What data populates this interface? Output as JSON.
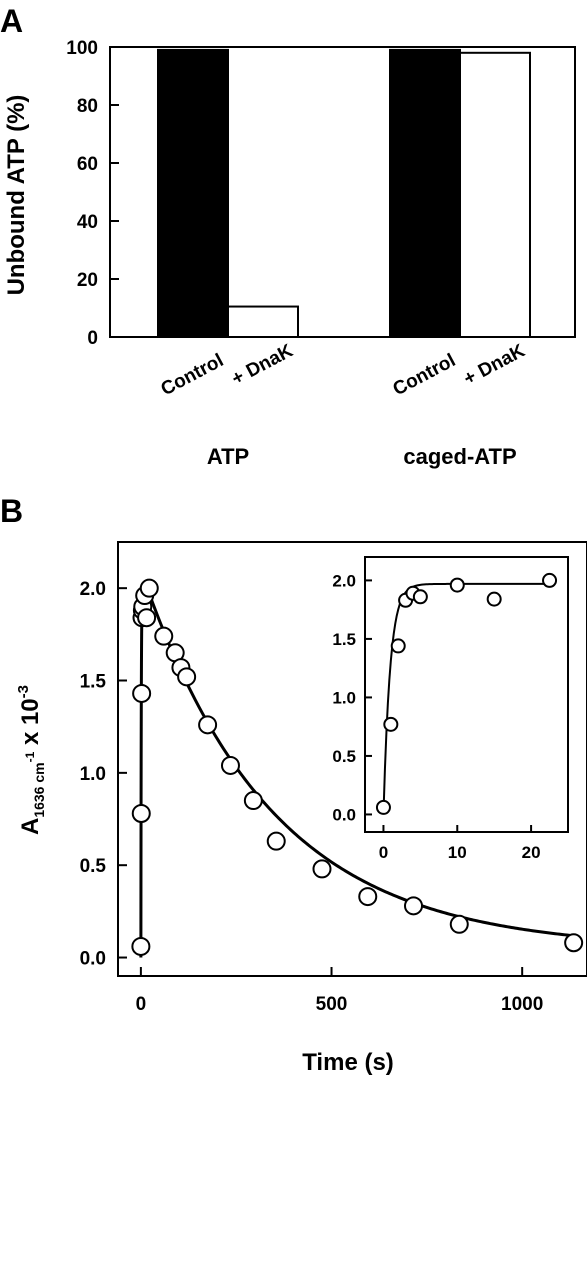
{
  "panels": {
    "a_letter": "A",
    "b_letter": "B"
  },
  "chart_data": [
    {
      "type": "bar",
      "ylabel": "Unbound ATP (%)",
      "ylim": [
        0,
        100
      ],
      "yticks": [
        0,
        20,
        40,
        60,
        80,
        100
      ],
      "groups": [
        {
          "name": "ATP",
          "bars": [
            {
              "label": "Control",
              "value": 99,
              "fill": "black"
            },
            {
              "label": "+ DnaK",
              "value": 10.5,
              "fill": "white"
            }
          ]
        },
        {
          "name": "caged-ATP",
          "bars": [
            {
              "label": "Control",
              "value": 99,
              "fill": "black"
            },
            {
              "label": "+ DnaK",
              "value": 98,
              "fill": "white"
            }
          ]
        }
      ]
    },
    {
      "type": "scatter",
      "xlabel": "Time (s)",
      "ylabel": {
        "main": "A",
        "sub": "1636 cm",
        "sub_sup": "-1",
        "tail": " x 10",
        "sup": "-3"
      },
      "xlim": [
        -60,
        1170
      ],
      "ylim": [
        -0.1,
        2.25
      ],
      "xticks": [
        0,
        500,
        1000
      ],
      "yticks": [
        0.0,
        0.5,
        1.0,
        1.5,
        2.0
      ],
      "ytick_labels": [
        "0.0",
        "0.5",
        "1.0",
        "1.5",
        "2.0"
      ],
      "points": [
        [
          0,
          0.06
        ],
        [
          1,
          0.78
        ],
        [
          2,
          1.43
        ],
        [
          3,
          1.84
        ],
        [
          4,
          1.88
        ],
        [
          5,
          1.9
        ],
        [
          10,
          1.96
        ],
        [
          15,
          1.84
        ],
        [
          22,
          2.0
        ],
        [
          60,
          1.74
        ],
        [
          90,
          1.65
        ],
        [
          105,
          1.57
        ],
        [
          120,
          1.52
        ],
        [
          175,
          1.26
        ],
        [
          235,
          1.04
        ],
        [
          295,
          0.85
        ],
        [
          355,
          0.63
        ],
        [
          475,
          0.48
        ],
        [
          595,
          0.33
        ],
        [
          715,
          0.28
        ],
        [
          835,
          0.18
        ],
        [
          1135,
          0.08
        ]
      ],
      "fit": {
        "peak": 1.97,
        "rise_k": 1.1,
        "decay_tau": 340,
        "decay_start": 22,
        "decay_offset": 0.045
      },
      "inset": {
        "xlim": [
          -2.5,
          25
        ],
        "ylim": [
          -0.15,
          2.2
        ],
        "xticks": [
          0,
          10,
          20
        ],
        "yticks": [
          0.0,
          0.5,
          1.0,
          1.5,
          2.0
        ],
        "ytick_labels": [
          "0.0",
          "0.5",
          "1.0",
          "1.5",
          "2.0"
        ],
        "points": [
          [
            0,
            0.06
          ],
          [
            1,
            0.77
          ],
          [
            2,
            1.44
          ],
          [
            3,
            1.83
          ],
          [
            4,
            1.89
          ],
          [
            5,
            1.86
          ],
          [
            10,
            1.96
          ],
          [
            15,
            1.84
          ],
          [
            22.5,
            2.0
          ]
        ]
      }
    }
  ]
}
